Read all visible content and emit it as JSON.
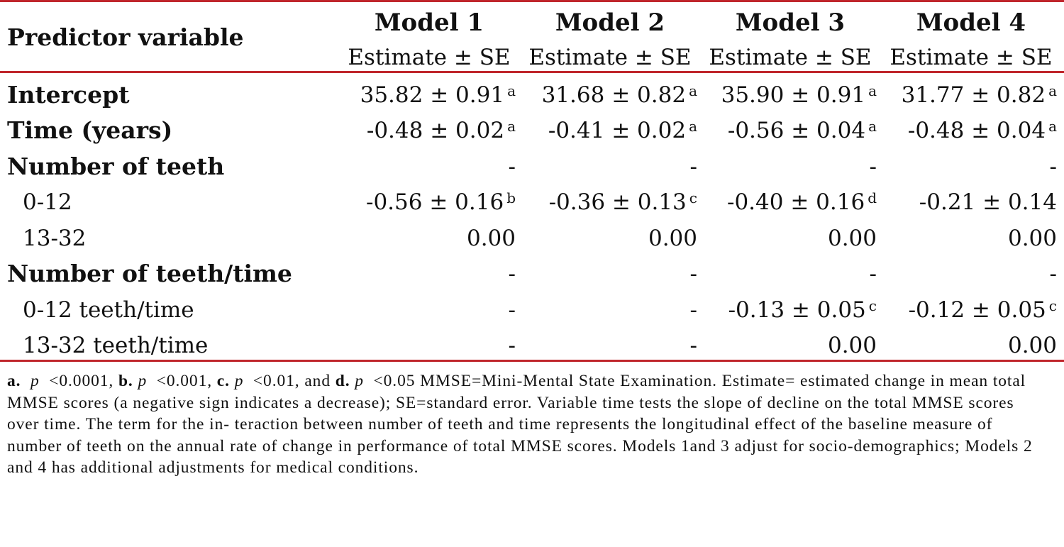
{
  "header": {
    "predictor": "Predictor variable",
    "models": [
      "Model 1",
      "Model 2",
      "Model 3",
      "Model 4"
    ],
    "subheader": "Estimate ± SE"
  },
  "rows": [
    {
      "label": "Intercept",
      "style": "main",
      "cells": [
        {
          "v": "35.82 ± 0.91",
          "s": "a"
        },
        {
          "v": "31.68 ± 0.82",
          "s": "a"
        },
        {
          "v": "35.90 ± 0.91",
          "s": "a"
        },
        {
          "v": "31.77 ± 0.82",
          "s": "a"
        }
      ]
    },
    {
      "label": "Time (years)",
      "style": "main",
      "cells": [
        {
          "v": "-0.48 ± 0.02",
          "s": "a"
        },
        {
          "v": "-0.41 ± 0.02",
          "s": "a"
        },
        {
          "v": "-0.56 ± 0.04",
          "s": "a"
        },
        {
          "v": "-0.48 ± 0.04",
          "s": "a"
        }
      ]
    },
    {
      "label": "Number of teeth",
      "style": "main",
      "cells": [
        {
          "v": "-",
          "s": ""
        },
        {
          "v": "-",
          "s": ""
        },
        {
          "v": "-",
          "s": ""
        },
        {
          "v": "-",
          "s": ""
        }
      ]
    },
    {
      "label": "0-12",
      "style": "sub",
      "cells": [
        {
          "v": "-0.56 ± 0.16",
          "s": "b"
        },
        {
          "v": "-0.36 ± 0.13",
          "s": "c"
        },
        {
          "v": "-0.40 ± 0.16",
          "s": "d"
        },
        {
          "v": "-0.21 ± 0.14",
          "s": ""
        }
      ]
    },
    {
      "label": "13-32",
      "style": "sub",
      "cells": [
        {
          "v": "0.00",
          "s": ""
        },
        {
          "v": "0.00",
          "s": ""
        },
        {
          "v": "0.00",
          "s": ""
        },
        {
          "v": "0.00",
          "s": ""
        }
      ]
    },
    {
      "label": "Number of teeth/time",
      "style": "main",
      "cells": [
        {
          "v": "-",
          "s": ""
        },
        {
          "v": "-",
          "s": ""
        },
        {
          "v": "-",
          "s": ""
        },
        {
          "v": "-",
          "s": ""
        }
      ]
    },
    {
      "label": "0-12 teeth/time",
      "style": "sub",
      "cells": [
        {
          "v": "-",
          "s": ""
        },
        {
          "v": "-",
          "s": ""
        },
        {
          "v": "-0.13 ± 0.05",
          "s": "c"
        },
        {
          "v": "-0.12 ± 0.05",
          "s": "c"
        }
      ]
    },
    {
      "label": "13-32 teeth/time",
      "style": "sub",
      "cells": [
        {
          "v": "-",
          "s": ""
        },
        {
          "v": "-",
          "s": ""
        },
        {
          "v": "0.00",
          "s": ""
        },
        {
          "v": "0.00",
          "s": ""
        }
      ]
    }
  ],
  "footnote": {
    "a_key": "a.",
    "a_p": "p",
    "a_val": "<0.0001,",
    "b_key": "b.",
    "b_p": "p",
    "b_val": "<0.001,",
    "c_key": "c.",
    "c_p": "p",
    "c_val": "<0.01, and",
    "d_key": "d.",
    "d_p": "p",
    "d_val": "<0.05",
    "text": "MMSE=Mini-Mental State Examination. Estimate= estimated change in mean total MMSE scores (a negative sign indicates a decrease); SE=standard error. Variable time tests the slope of decline on the total MMSE scores over time. The term for the in- teraction between number of teeth and time represents the longitudinal effect of the baseline measure of number of teeth on the annual rate of change in performance of total MMSE scores. Models 1and 3 adjust for socio-demographics; Models 2 and 4 has additional adjustments for medical conditions."
  },
  "colors": {
    "rule": "#c0262c",
    "text": "#111111",
    "background": "#ffffff"
  }
}
